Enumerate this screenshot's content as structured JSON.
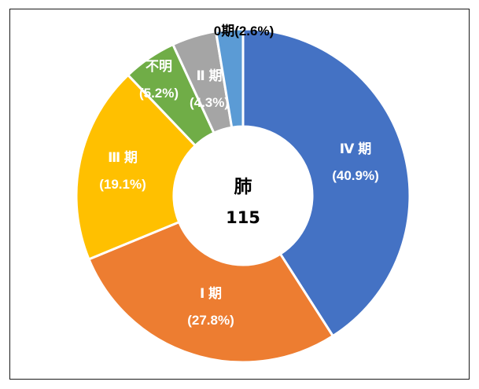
{
  "chart_data": {
    "type": "pie",
    "variant": "donut",
    "center_title": "肺",
    "center_value": "115",
    "slices": [
      {
        "name": "Ⅳ期",
        "label": "Ⅳ 期",
        "percent_label": "(40.9%)",
        "value": 40.9,
        "color": "#4472C4",
        "label_color": "#ffffff"
      },
      {
        "name": "Ⅰ期",
        "label": "Ⅰ 期",
        "percent_label": "(27.8%)",
        "value": 27.8,
        "color": "#ED7D31",
        "label_color": "#ffffff"
      },
      {
        "name": "Ⅲ期",
        "label": "Ⅲ 期",
        "percent_label": "(19.1%)",
        "value": 19.1,
        "color": "#FFC000",
        "label_color": "#ffffff"
      },
      {
        "name": "不明",
        "label": "不明",
        "percent_label": "(5.2%)",
        "value": 5.2,
        "color": "#70AD47",
        "label_color": "#ffffff"
      },
      {
        "name": "Ⅱ期",
        "label": "Ⅱ 期",
        "percent_label": "(4.3%)",
        "value": 4.3,
        "color": "#A5A5A5",
        "label_color": "#ffffff"
      },
      {
        "name": "0期",
        "label": "0期(2.6%)",
        "percent_label": "",
        "value": 2.6,
        "color": "#5B9BD5",
        "label_color": "#000000"
      }
    ],
    "legend": "none",
    "direction": "clockwise from top"
  }
}
